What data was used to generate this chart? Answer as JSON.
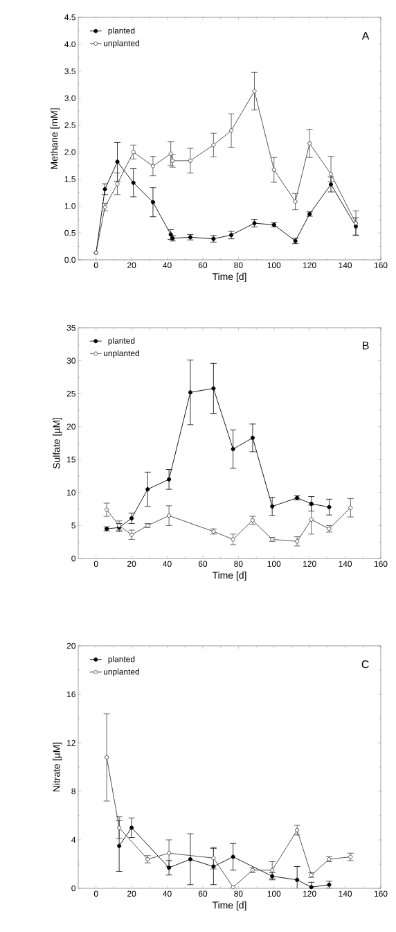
{
  "chart_data": [
    {
      "type": "line",
      "xlabel": "Time [d]",
      "ylabel": "Methane [mM]",
      "xlim": [
        -10,
        160
      ],
      "xticks": [
        0,
        20,
        40,
        60,
        80,
        100,
        120,
        140,
        160
      ],
      "ylim": [
        0,
        4.5
      ],
      "yticks": [
        {
          "value": 0,
          "label": "0.0"
        },
        {
          "value": 0.5,
          "label": "0.5"
        },
        {
          "value": 1,
          "label": "1.0"
        },
        {
          "value": 1.5,
          "label": "1.5"
        },
        {
          "value": 2,
          "label": "2.0"
        },
        {
          "value": 2.5,
          "label": "2.5"
        },
        {
          "value": 3,
          "label": "3.0"
        },
        {
          "value": 3.5,
          "label": "3.5"
        },
        {
          "value": 4,
          "label": "4.0"
        },
        {
          "value": 4.5,
          "label": "4.5"
        }
      ],
      "legend": "top left",
      "marker": "circle",
      "annotations": [
        "A"
      ],
      "series": [
        {
          "name": "planted",
          "color": "#000000",
          "x": [
            0,
            5,
            12,
            21,
            32,
            42,
            43,
            53,
            66,
            76,
            89,
            100,
            112,
            120,
            132,
            146
          ],
          "values": [
            0.13,
            1.31,
            1.82,
            1.43,
            1.07,
            0.47,
            0.4,
            0.42,
            0.39,
            0.46,
            0.68,
            0.65,
            0.35,
            0.85,
            1.4,
            0.62
          ],
          "errors": [
            null,
            0.1,
            0.36,
            0.26,
            0.27,
            0.09,
            0.05,
            0.05,
            0.06,
            0.07,
            0.07,
            0.04,
            0.05,
            0.04,
            0.14,
            0.16
          ]
        },
        {
          "name": "unplanted",
          "color": "#404040",
          "x": [
            0,
            5,
            12,
            21,
            32,
            42,
            43,
            53,
            66,
            76,
            89,
            100,
            112,
            120,
            132,
            146
          ],
          "values": [
            0.13,
            0.98,
            1.41,
            2.0,
            1.74,
            1.97,
            1.84,
            1.84,
            2.13,
            2.4,
            3.13,
            1.67,
            1.08,
            2.16,
            1.59,
            0.68
          ],
          "errors": [
            null,
            0.07,
            0.2,
            0.13,
            0.18,
            0.22,
            0.12,
            0.23,
            0.22,
            0.31,
            0.35,
            0.23,
            0.15,
            0.26,
            [
              1.45,
              1.92
            ],
            0.23
          ]
        }
      ]
    },
    {
      "type": "line",
      "xlabel": "Time [d]",
      "ylabel": "Sulfate [µM]",
      "xlim": [
        -10,
        160
      ],
      "xticks": [
        0,
        20,
        40,
        60,
        80,
        100,
        120,
        140,
        160
      ],
      "ylim": [
        0,
        35
      ],
      "yticks": [
        0,
        5,
        10,
        15,
        20,
        25,
        30,
        35
      ],
      "legend": "top left",
      "marker": "circle",
      "annotations": [
        "B"
      ],
      "series": [
        {
          "name": "planted",
          "color": "#000000",
          "x": [
            6,
            13,
            20,
            29,
            41,
            53,
            66,
            77,
            88,
            99,
            113,
            121,
            131
          ],
          "values": [
            4.5,
            4.7,
            6.1,
            10.5,
            12.0,
            25.2,
            25.8,
            16.6,
            18.3,
            7.9,
            9.2,
            8.3,
            7.8
          ],
          "errors": [
            0.3,
            0.6,
            0.8,
            2.6,
            1.5,
            4.9,
            3.8,
            2.9,
            2.1,
            1.4,
            0.3,
            1.1,
            1.2
          ]
        },
        {
          "name": "unplanted",
          "color": "#404040",
          "x": [
            6,
            13,
            20,
            29,
            41,
            66,
            77,
            88,
            99,
            113,
            121,
            131,
            143
          ],
          "values": [
            7.4,
            5.0,
            3.6,
            5.0,
            6.5,
            4.1,
            2.9,
            5.8,
            2.9,
            2.6,
            5.9,
            4.5,
            7.7
          ],
          "errors": [
            1.0,
            0.7,
            0.7,
            0.3,
            1.5,
            0.4,
            0.8,
            0.6,
            0.3,
            0.7,
            2.2,
            0.5,
            1.4
          ]
        }
      ]
    },
    {
      "type": "line",
      "xlabel": "Time [d]",
      "ylabel": "Nitrate [µM]",
      "xlim": [
        -10,
        160
      ],
      "xticks": [
        0,
        20,
        40,
        60,
        80,
        100,
        120,
        140,
        160
      ],
      "ylim": [
        0,
        20
      ],
      "yticks": [
        0,
        4,
        8,
        12,
        16,
        20
      ],
      "legend": "top left",
      "marker": "circle",
      "annotations": [
        "C"
      ],
      "series": [
        {
          "name": "planted",
          "color": "#000000",
          "x": [
            13,
            20,
            41,
            53,
            66,
            77,
            99,
            113,
            121,
            131
          ],
          "values": [
            3.5,
            5.0,
            1.7,
            2.4,
            1.8,
            2.6,
            1.0,
            0.7,
            0.1,
            0.3
          ],
          "errors": [
            2.1,
            0.8,
            0.6,
            2.1,
            1.5,
            1.1,
            0.3,
            1.1,
            0.4,
            0.3
          ]
        },
        {
          "name": "unplanted",
          "color": "#404040",
          "x": [
            6,
            13,
            29,
            41,
            66,
            77,
            88,
            99,
            113,
            121,
            131,
            143
          ],
          "values": [
            10.8,
            5.0,
            2.4,
            2.9,
            2.5,
            0.1,
            1.5,
            1.5,
            4.8,
            1.1,
            2.4,
            2.6
          ],
          "errors": [
            3.6,
            0.9,
            0.3,
            1.1,
            0.9,
            null,
            0.2,
            0.7,
            0.4,
            0.2,
            0.2,
            0.3
          ]
        }
      ]
    }
  ]
}
